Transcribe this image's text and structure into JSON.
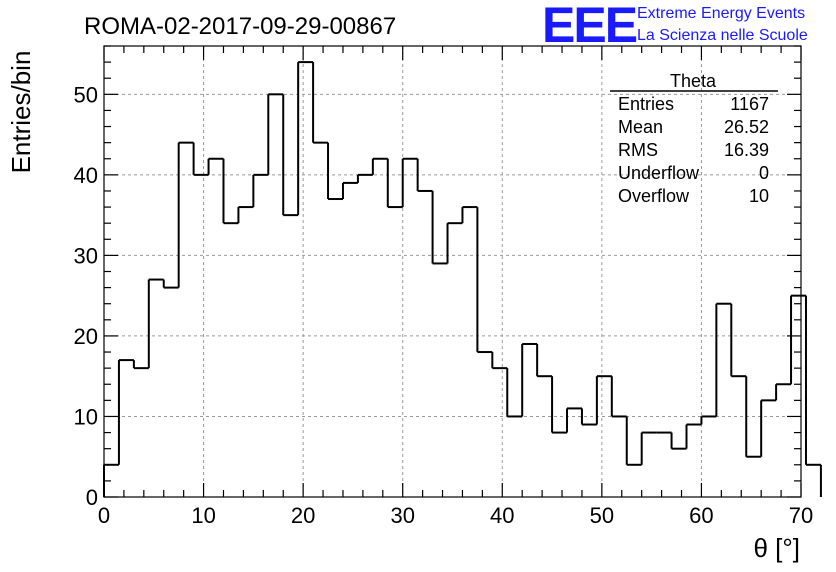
{
  "header": {
    "title": "ROMA-02-2017-09-29-00867"
  },
  "logo": {
    "mark": "EEE",
    "line1": "Extreme Energy Events",
    "line2": "La Scienza nelle Scuole",
    "color": "#1a1aff"
  },
  "stats": {
    "name": "Theta",
    "rows": [
      {
        "label": "Entries",
        "value": "1167"
      },
      {
        "label": "Mean",
        "value": "26.52"
      },
      {
        "label": "RMS",
        "value": "16.39"
      },
      {
        "label": "Underflow",
        "value": "0"
      },
      {
        "label": "Overflow",
        "value": "10"
      }
    ]
  },
  "chart_data": {
    "type": "bar",
    "style": "step-histogram",
    "title": "ROMA-02-2017-09-29-00867",
    "xlabel": "θ [°]",
    "ylabel": "Entries/bin",
    "xlim": [
      0,
      70
    ],
    "ylim": [
      0,
      56
    ],
    "grid": true,
    "x_ticks": [
      0,
      10,
      20,
      30,
      40,
      50,
      60,
      70
    ],
    "y_ticks": [
      0,
      10,
      20,
      30,
      40,
      50
    ],
    "bin_width": 1.5,
    "x_start": 0,
    "values": [
      4,
      17,
      16,
      27,
      26,
      44,
      40,
      42,
      34,
      36,
      40,
      50,
      35,
      54,
      44,
      37,
      39,
      40,
      42,
      36,
      42,
      38,
      29,
      34,
      36,
      18,
      16,
      10,
      19,
      15,
      8,
      11,
      9,
      15,
      10,
      4,
      8,
      8,
      6,
      9,
      10,
      24,
      15,
      5,
      12,
      14,
      25,
      4
    ],
    "line_color": "#000000"
  }
}
